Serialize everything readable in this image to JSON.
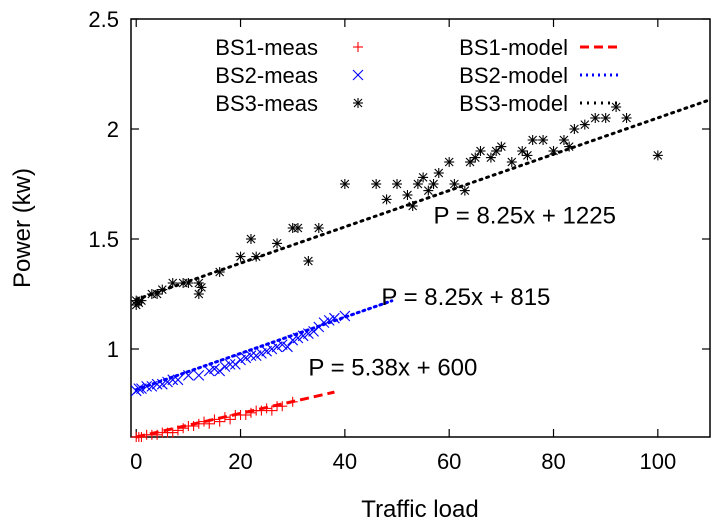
{
  "chart_data": {
    "type": "scatter",
    "xlabel": "Traffic load",
    "ylabel": "Power (kw)",
    "xlim": [
      -1,
      110
    ],
    "ylim": [
      0.6,
      2.5
    ],
    "x_ticks": [
      0,
      20,
      40,
      60,
      80,
      100
    ],
    "x_tick_labels": [
      "0",
      "20",
      "40",
      "60",
      "80",
      "100"
    ],
    "y_ticks": [
      1,
      1.5,
      2,
      2.5
    ],
    "y_tick_labels": [
      "1",
      "1.5",
      "2",
      "2.5"
    ],
    "grid": false,
    "legend_position": "top-left",
    "series": [
      {
        "name": "BS1-meas",
        "kind": "points",
        "marker": "plus",
        "color": "#ff0000",
        "points": [
          [
            0,
            0.6
          ],
          [
            0.5,
            0.6
          ],
          [
            1,
            0.6
          ],
          [
            2,
            0.61
          ],
          [
            3,
            0.61
          ],
          [
            4,
            0.61
          ],
          [
            5,
            0.62
          ],
          [
            6,
            0.62
          ],
          [
            7,
            0.62
          ],
          [
            8,
            0.63
          ],
          [
            9,
            0.64
          ],
          [
            10,
            0.65
          ],
          [
            11,
            0.65
          ],
          [
            12,
            0.66
          ],
          [
            13,
            0.67
          ],
          [
            14,
            0.66
          ],
          [
            15,
            0.68
          ],
          [
            16,
            0.67
          ],
          [
            17,
            0.69
          ],
          [
            18,
            0.68
          ],
          [
            19,
            0.7
          ],
          [
            20,
            0.7
          ],
          [
            21,
            0.7
          ],
          [
            22,
            0.71
          ],
          [
            23,
            0.72
          ],
          [
            24,
            0.72
          ],
          [
            25,
            0.73
          ],
          [
            26,
            0.72
          ],
          [
            27,
            0.74
          ],
          [
            28,
            0.74
          ],
          [
            30,
            0.76
          ]
        ]
      },
      {
        "name": "BS2-meas",
        "kind": "points",
        "marker": "cross",
        "color": "#0000ff",
        "points": [
          [
            0,
            0.81
          ],
          [
            0.5,
            0.82
          ],
          [
            1,
            0.82
          ],
          [
            2,
            0.83
          ],
          [
            3,
            0.83
          ],
          [
            4,
            0.84
          ],
          [
            5,
            0.84
          ],
          [
            6,
            0.85
          ],
          [
            7,
            0.86
          ],
          [
            8,
            0.86
          ],
          [
            10,
            0.88
          ],
          [
            12,
            0.88
          ],
          [
            14,
            0.9
          ],
          [
            15,
            0.91
          ],
          [
            16,
            0.9
          ],
          [
            17,
            0.92
          ],
          [
            18,
            0.93
          ],
          [
            19,
            0.93
          ],
          [
            20,
            0.95
          ],
          [
            21,
            0.96
          ],
          [
            22,
            0.97
          ],
          [
            23,
            0.97
          ],
          [
            24,
            0.98
          ],
          [
            25,
            0.99
          ],
          [
            26,
            1.0
          ],
          [
            27,
            1.01
          ],
          [
            28,
            1.02
          ],
          [
            29,
            1.01
          ],
          [
            30,
            1.04
          ],
          [
            31,
            1.05
          ],
          [
            32,
            1.06
          ],
          [
            33,
            1.07
          ],
          [
            34,
            1.08
          ],
          [
            35,
            1.1
          ],
          [
            36,
            1.12
          ],
          [
            37,
            1.13
          ],
          [
            38,
            1.14
          ],
          [
            40,
            1.15
          ]
        ]
      },
      {
        "name": "BS3-meas",
        "kind": "points",
        "marker": "star",
        "color": "#000000",
        "points": [
          [
            0,
            1.2
          ],
          [
            0,
            1.22
          ],
          [
            0.5,
            1.21
          ],
          [
            1,
            1.22
          ],
          [
            3,
            1.25
          ],
          [
            4,
            1.25
          ],
          [
            5,
            1.27
          ],
          [
            7,
            1.3
          ],
          [
            9,
            1.3
          ],
          [
            10,
            1.3
          ],
          [
            12,
            1.3
          ],
          [
            12,
            1.25
          ],
          [
            12.5,
            1.28
          ],
          [
            16,
            1.35
          ],
          [
            20,
            1.42
          ],
          [
            22,
            1.5
          ],
          [
            23,
            1.42
          ],
          [
            27,
            1.48
          ],
          [
            30,
            1.55
          ],
          [
            31,
            1.55
          ],
          [
            33,
            1.4
          ],
          [
            35,
            1.55
          ],
          [
            40,
            1.75
          ],
          [
            46,
            1.75
          ],
          [
            48,
            1.68
          ],
          [
            50,
            1.75
          ],
          [
            52,
            1.7
          ],
          [
            53,
            1.65
          ],
          [
            54,
            1.75
          ],
          [
            55,
            1.78
          ],
          [
            56,
            1.72
          ],
          [
            57,
            1.75
          ],
          [
            58,
            1.8
          ],
          [
            60,
            1.85
          ],
          [
            61,
            1.75
          ],
          [
            63,
            1.72
          ],
          [
            64,
            1.85
          ],
          [
            65,
            1.87
          ],
          [
            66,
            1.9
          ],
          [
            68,
            1.87
          ],
          [
            69,
            1.9
          ],
          [
            70,
            1.92
          ],
          [
            72,
            1.85
          ],
          [
            74,
            1.9
          ],
          [
            75,
            1.88
          ],
          [
            76,
            1.95
          ],
          [
            78,
            1.95
          ],
          [
            80,
            1.9
          ],
          [
            82,
            1.95
          ],
          [
            83,
            1.92
          ],
          [
            84,
            2.0
          ],
          [
            86,
            2.02
          ],
          [
            88,
            2.05
          ],
          [
            90,
            2.05
          ],
          [
            92,
            2.1
          ],
          [
            94,
            2.05
          ],
          [
            100,
            1.88
          ]
        ]
      },
      {
        "name": "BS1-model",
        "kind": "line",
        "dash": "dashed",
        "color": "#ff0000",
        "points": [
          [
            0,
            0.6
          ],
          [
            38,
            0.804
          ]
        ]
      },
      {
        "name": "BS2-model",
        "kind": "line",
        "dash": "dotted",
        "color": "#0000ff",
        "points": [
          [
            0,
            0.815
          ],
          [
            49,
            1.219
          ]
        ]
      },
      {
        "name": "BS3-model",
        "kind": "line",
        "dash": "dotdash",
        "color": "#000000",
        "points": [
          [
            0,
            1.225
          ],
          [
            110,
            2.133
          ]
        ]
      }
    ],
    "legend": [
      {
        "label": "BS1-meas",
        "series": 0
      },
      {
        "label": "BS2-meas",
        "series": 1
      },
      {
        "label": "BS3-meas",
        "series": 2
      },
      {
        "label": "BS1-model",
        "series": 3
      },
      {
        "label": "BS2-model",
        "series": 4
      },
      {
        "label": "BS3-model",
        "series": 5
      }
    ],
    "annotations": [
      {
        "text": "P = 5.38x + 600",
        "x": 33,
        "y": 0.88
      },
      {
        "text": "P = 8.25x + 815",
        "x": 47,
        "y": 1.2
      },
      {
        "text": "P = 8.25x + 1225",
        "x": 57,
        "y": 1.57
      }
    ]
  }
}
